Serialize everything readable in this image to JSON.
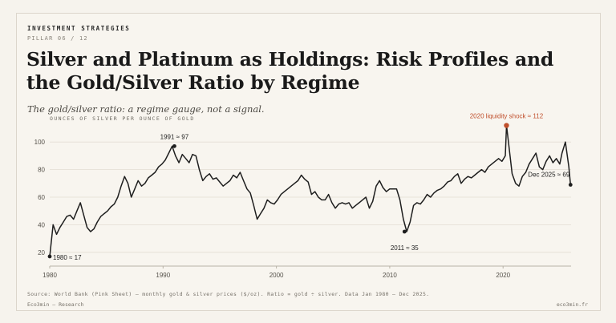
{
  "header": {
    "kicker": "INVESTMENT STRATEGIES",
    "pillar": "PILLAR 06 / 12",
    "title": "Silver and Platinum as Holdings: Risk Profiles and the Gold/Silver Ratio by Regime",
    "subtitle": "The gold/silver ratio: a regime gauge, not a signal."
  },
  "footer": {
    "source": "Source: World Bank (Pink Sheet) — monthly gold & silver prices ($/oz). Ratio = gold ÷ silver. Data Jan 1980 — Dec 2025.",
    "brand": "Eco3min — Research",
    "site": "eco3min.fr"
  },
  "colors": {
    "line": "#1e1e1e",
    "accent": "#c0502d",
    "grid": "#e3ddd3",
    "axis": "#b8b2a7"
  },
  "chart_data": {
    "type": "line",
    "title": "Silver and Platinum as Holdings: Risk Profiles and the Gold/Silver Ratio by Regime",
    "subtitle": "The gold/silver ratio: a regime gauge, not a signal.",
    "ylabel": "OUNCES OF SILVER PER OUNCE OF GOLD",
    "xlabel": "",
    "xlim": [
      1980,
      2026
    ],
    "ylim": [
      10,
      110
    ],
    "x_ticks": [
      1980,
      1990,
      2000,
      2010,
      2020
    ],
    "y_ticks": [
      20,
      40,
      60,
      80,
      100
    ],
    "grid": true,
    "series": [
      {
        "name": "Gold/silver ratio",
        "x": [
          1980.0,
          1980.3,
          1980.6,
          1980.9,
          1981.2,
          1981.5,
          1981.8,
          1982.1,
          1982.4,
          1982.7,
          1983.0,
          1983.3,
          1983.6,
          1983.9,
          1984.2,
          1984.5,
          1984.8,
          1985.1,
          1985.4,
          1985.7,
          1986.0,
          1986.3,
          1986.6,
          1986.9,
          1987.2,
          1987.5,
          1987.8,
          1988.1,
          1988.4,
          1988.7,
          1989.0,
          1989.3,
          1989.6,
          1989.9,
          1990.2,
          1990.5,
          1990.8,
          1991.1,
          1991.4,
          1991.7,
          1992.0,
          1992.3,
          1992.6,
          1992.9,
          1993.2,
          1993.5,
          1993.8,
          1994.1,
          1994.4,
          1994.7,
          1995.0,
          1995.3,
          1995.6,
          1995.9,
          1996.2,
          1996.5,
          1996.8,
          1997.1,
          1997.4,
          1997.7,
          1998.0,
          1998.3,
          1998.6,
          1998.9,
          1999.2,
          1999.5,
          1999.8,
          2000.1,
          2000.4,
          2000.7,
          2001.0,
          2001.3,
          2001.6,
          2001.9,
          2002.2,
          2002.5,
          2002.8,
          2003.1,
          2003.4,
          2003.7,
          2004.0,
          2004.3,
          2004.6,
          2004.9,
          2005.2,
          2005.5,
          2005.8,
          2006.1,
          2006.4,
          2006.7,
          2007.0,
          2007.3,
          2007.6,
          2007.9,
          2008.2,
          2008.5,
          2008.8,
          2009.1,
          2009.4,
          2009.7,
          2010.0,
          2010.3,
          2010.6,
          2010.9,
          2011.2,
          2011.5,
          2011.8,
          2012.1,
          2012.4,
          2012.7,
          2013.0,
          2013.3,
          2013.6,
          2013.9,
          2014.2,
          2014.5,
          2014.8,
          2015.1,
          2015.4,
          2015.7,
          2016.0,
          2016.3,
          2016.6,
          2016.9,
          2017.2,
          2017.5,
          2017.8,
          2018.1,
          2018.4,
          2018.7,
          2019.0,
          2019.3,
          2019.6,
          2019.9,
          2020.2,
          2020.3,
          2020.5,
          2020.8,
          2021.1,
          2021.4,
          2021.7,
          2022.0,
          2022.3,
          2022.6,
          2022.9,
          2023.2,
          2023.5,
          2023.8,
          2024.1,
          2024.4,
          2024.7,
          2025.0,
          2025.2,
          2025.5,
          2025.8,
          2025.95
        ],
        "y": [
          17,
          40,
          33,
          38,
          42,
          46,
          47,
          44,
          50,
          56,
          47,
          38,
          35,
          37,
          42,
          46,
          48,
          50,
          53,
          55,
          60,
          68,
          75,
          70,
          60,
          66,
          72,
          68,
          70,
          74,
          76,
          78,
          82,
          84,
          87,
          92,
          97,
          90,
          85,
          91,
          88,
          85,
          91,
          90,
          80,
          72,
          75,
          77,
          73,
          74,
          71,
          68,
          70,
          72,
          76,
          74,
          78,
          72,
          66,
          63,
          54,
          44,
          48,
          52,
          58,
          56,
          55,
          58,
          62,
          64,
          66,
          68,
          70,
          72,
          76,
          73,
          71,
          62,
          64,
          60,
          58,
          58,
          62,
          56,
          52,
          55,
          56,
          55,
          56,
          52,
          54,
          56,
          58,
          60,
          52,
          57,
          68,
          72,
          67,
          64,
          66,
          66,
          66,
          58,
          44,
          35,
          42,
          54,
          56,
          55,
          58,
          62,
          60,
          63,
          65,
          66,
          68,
          71,
          72,
          75,
          77,
          70,
          73,
          75,
          74,
          76,
          78,
          80,
          78,
          82,
          84,
          86,
          88,
          86,
          90,
          112,
          98,
          77,
          70,
          68,
          75,
          78,
          84,
          88,
          92,
          82,
          80,
          86,
          90,
          85,
          88,
          84,
          92,
          100,
          82,
          69
        ]
      }
    ],
    "annotations": [
      {
        "x": 1980.0,
        "y": 17,
        "label": "1980 ≈ 17"
      },
      {
        "x": 1991.0,
        "y": 97,
        "label": "1991 ≈ 97"
      },
      {
        "x": 2011.3,
        "y": 35,
        "label": "2011 ≈ 35"
      },
      {
        "x": 2020.3,
        "y": 112,
        "label": "2020 liquidity shock ≈ 112",
        "highlight": true
      },
      {
        "x": 2025.95,
        "y": 69,
        "label": "Dec 2025 ≈ 69"
      }
    ]
  }
}
